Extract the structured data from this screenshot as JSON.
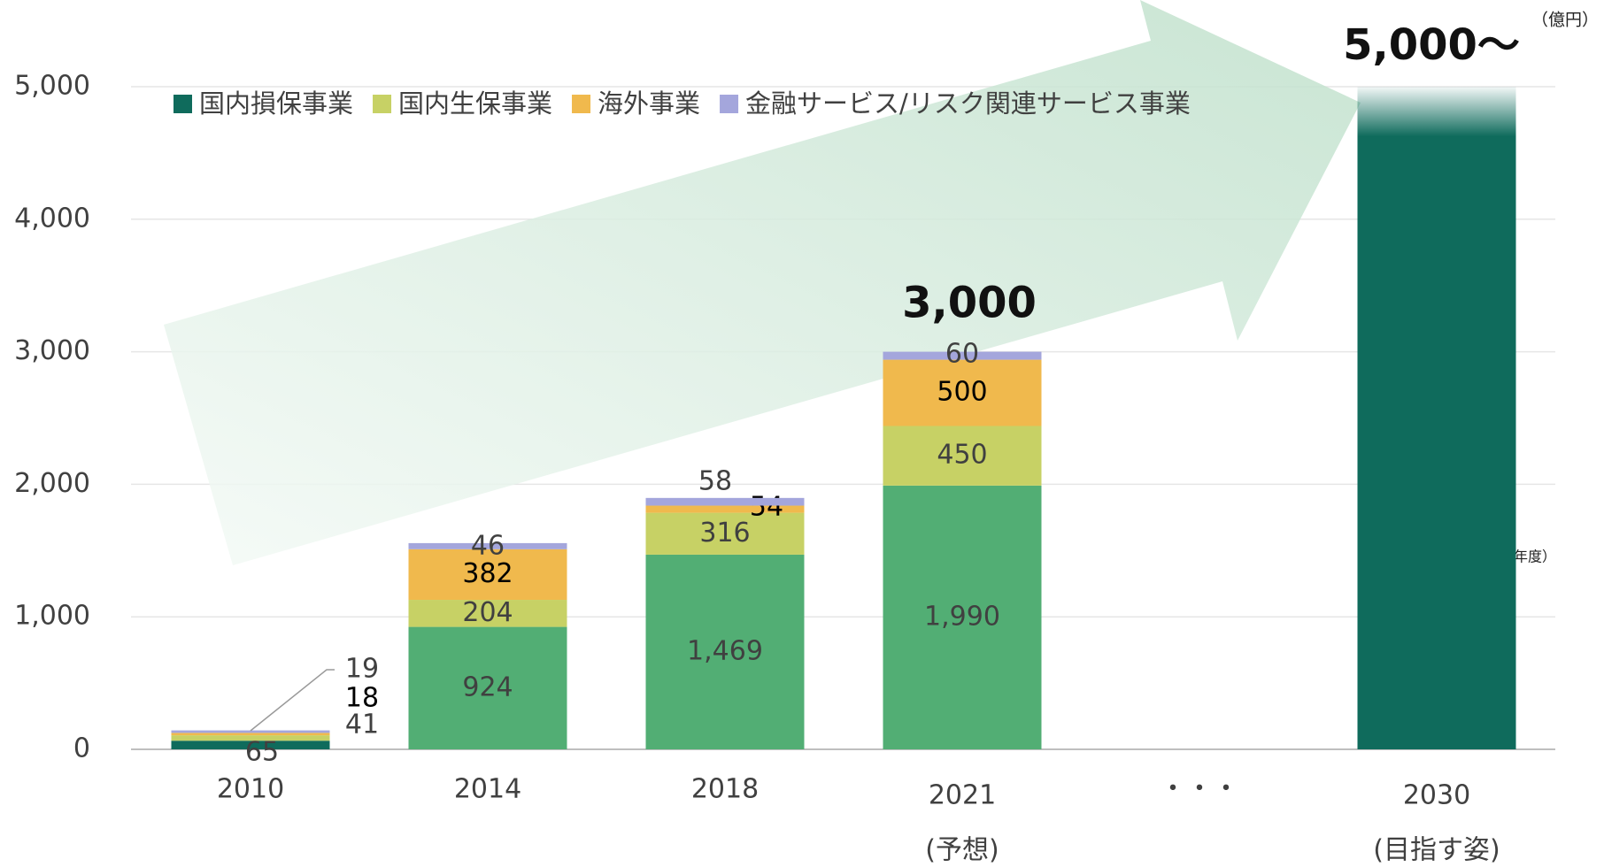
{
  "chart_data": {
    "type": "stacked-bar",
    "unit_label": "（億円）",
    "x_unit_label": "（年度）",
    "categories": [
      "2010",
      "2014",
      "2018",
      "2021",
      "・・・",
      "2030"
    ],
    "category_notes": [
      null,
      null,
      null,
      "(予想)",
      null,
      "(目指す姿)"
    ],
    "series": [
      {
        "name": "国内損保事業",
        "color": "#0f6b5c",
        "point_colors": [
          "#0f6b5c",
          "#52ae74",
          "#52ae74",
          "#52ae74",
          null,
          "#0f6b5c"
        ],
        "values": [
          65,
          924,
          1469,
          1990,
          null,
          5000
        ],
        "value_labels": [
          "65",
          "924",
          "1,469",
          "1,990",
          null,
          null
        ]
      },
      {
        "name": "国内生保事業",
        "color": "#c7d165",
        "values": [
          41,
          204,
          316,
          450,
          null,
          null
        ]
      },
      {
        "name": "海外事業",
        "color": "#f0b94d",
        "values": [
          18,
          382,
          54,
          500,
          null,
          null
        ]
      },
      {
        "name": "金融サービス/リスク関連サービス事業",
        "color": "#a4a6dc",
        "values": [
          19,
          46,
          58,
          60,
          null,
          null
        ]
      }
    ],
    "total_labels": [
      null,
      null,
      null,
      "3,000",
      null,
      "5,000〜"
    ],
    "ylim": [
      0,
      5000
    ],
    "yticks": [
      0,
      {
        "value": 1000,
        "label": "1,000"
      },
      {
        "value": 2000,
        "label": "2,000"
      },
      {
        "value": 3000,
        "label": "3,000"
      },
      {
        "value": 4000,
        "label": "4,000"
      },
      {
        "value": 5000,
        "label": "5,000"
      }
    ],
    "grid": true
  }
}
